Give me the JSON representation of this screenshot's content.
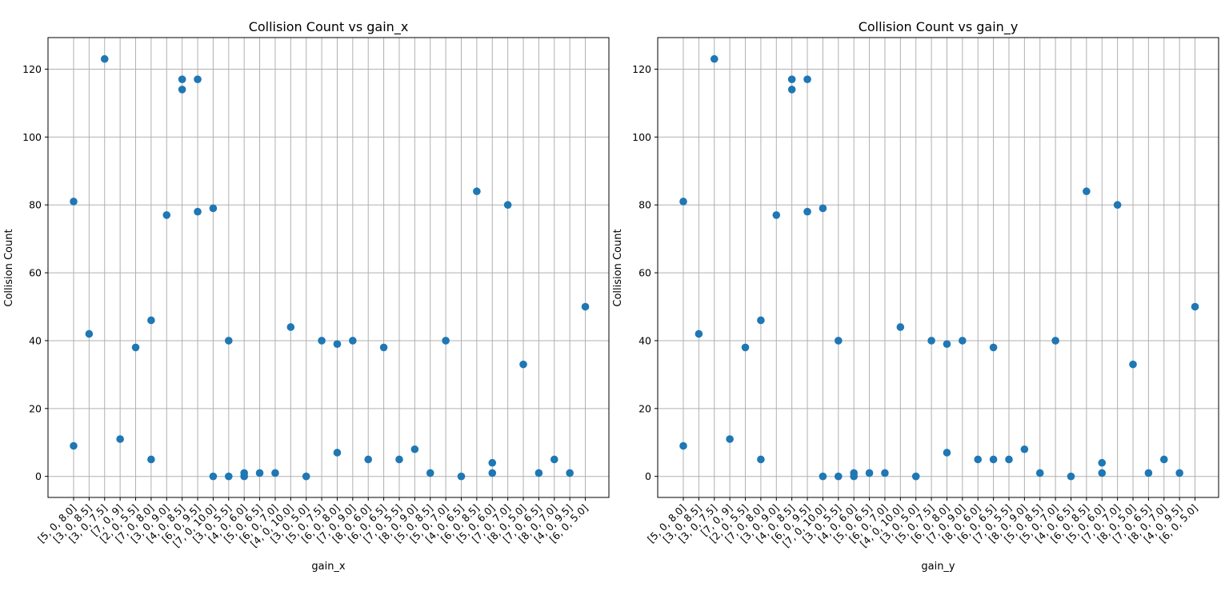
{
  "chart_data": [
    {
      "type": "scatter",
      "title": "Collision Count vs gain_x",
      "xlabel": "gain_x",
      "ylabel": "Collision Count",
      "ylim": [
        -6.2,
        129.3
      ],
      "yticks": [
        0,
        20,
        40,
        60,
        80,
        100,
        120
      ],
      "grid": true,
      "marker_color": "#1f77b4",
      "categories": [
        "[5, 0, 8.0]",
        "[3, 0, 8.5]",
        "[3, 0, 7.5]",
        "[7, 0, 9]",
        "[2, 0, 5.5]",
        "[7, 0, 8.0]",
        "[3, 0, 9.0]",
        "[4, 0, 8.5]",
        "[6, 0, 9.5]",
        "[7, 0, 10.0]",
        "[3, 0, 5.5]",
        "[4, 0, 6.0]",
        "[5, 0, 6.5]",
        "[6, 0, 7.0]",
        "[4, 0, 10.0]",
        "[3, 0, 5.0]",
        "[5, 0, 7.5]",
        "[6, 0, 8.0]",
        "[7, 0, 9.0]",
        "[8, 0, 6.0]",
        "[6, 0, 6.5]",
        "[7, 0, 5.5]",
        "[8, 0, 9.0]",
        "[5, 0, 8.5]",
        "[5, 0, 7.0]",
        "[4, 0, 6.5]",
        "[6, 0, 8.5]",
        "[5, 0, 6.0]",
        "[7, 0, 7.0]",
        "[8, 0, 5.0]",
        "[7, 0, 6.5]",
        "[8, 0, 7.0]",
        "[4, 0, 9.5]",
        "[6, 0, 5.0]"
      ],
      "points": [
        {
          "x": 0,
          "y": 81
        },
        {
          "x": 0,
          "y": 9
        },
        {
          "x": 1,
          "y": 42
        },
        {
          "x": 2,
          "y": 123
        },
        {
          "x": 3,
          "y": 11
        },
        {
          "x": 4,
          "y": 38
        },
        {
          "x": 5,
          "y": 46
        },
        {
          "x": 5,
          "y": 5
        },
        {
          "x": 6,
          "y": 77
        },
        {
          "x": 7,
          "y": 117
        },
        {
          "x": 7,
          "y": 114
        },
        {
          "x": 8,
          "y": 117
        },
        {
          "x": 8,
          "y": 78
        },
        {
          "x": 9,
          "y": 79
        },
        {
          "x": 9,
          "y": 0
        },
        {
          "x": 10,
          "y": 40
        },
        {
          "x": 10,
          "y": 0
        },
        {
          "x": 11,
          "y": 1
        },
        {
          "x": 11,
          "y": 0
        },
        {
          "x": 12,
          "y": 1
        },
        {
          "x": 13,
          "y": 1
        },
        {
          "x": 14,
          "y": 44
        },
        {
          "x": 15,
          "y": 0
        },
        {
          "x": 16,
          "y": 40
        },
        {
          "x": 17,
          "y": 39
        },
        {
          "x": 17,
          "y": 7
        },
        {
          "x": 18,
          "y": 40
        },
        {
          "x": 19,
          "y": 5
        },
        {
          "x": 20,
          "y": 38
        },
        {
          "x": 21,
          "y": 5
        },
        {
          "x": 22,
          "y": 8
        },
        {
          "x": 23,
          "y": 1
        },
        {
          "x": 24,
          "y": 40
        },
        {
          "x": 25,
          "y": 0
        },
        {
          "x": 26,
          "y": 84
        },
        {
          "x": 27,
          "y": 4
        },
        {
          "x": 27,
          "y": 1
        },
        {
          "x": 28,
          "y": 80
        },
        {
          "x": 29,
          "y": 33
        },
        {
          "x": 30,
          "y": 1
        },
        {
          "x": 31,
          "y": 5
        },
        {
          "x": 32,
          "y": 1
        },
        {
          "x": 33,
          "y": 50
        }
      ]
    },
    {
      "type": "scatter",
      "title": "Collision Count vs gain_y",
      "xlabel": "gain_y",
      "ylabel": "Collision Count",
      "ylim": [
        -6.2,
        129.3
      ],
      "yticks": [
        0,
        20,
        40,
        60,
        80,
        100,
        120
      ],
      "grid": true,
      "marker_color": "#1f77b4",
      "categories": [
        "[5, 0, 8.0]",
        "[3, 0, 8.5]",
        "[3, 0, 7.5]",
        "[7, 0, 9]",
        "[2, 0, 5.5]",
        "[7, 0, 8.0]",
        "[3, 0, 9.0]",
        "[4, 0, 8.5]",
        "[6, 0, 9.5]",
        "[7, 0, 10.0]",
        "[3, 0, 5.5]",
        "[4, 0, 6.0]",
        "[5, 0, 6.5]",
        "[6, 0, 7.0]",
        "[4, 0, 10.0]",
        "[3, 0, 5.0]",
        "[5, 0, 7.5]",
        "[6, 0, 8.0]",
        "[7, 0, 9.0]",
        "[8, 0, 6.0]",
        "[6, 0, 6.5]",
        "[7, 0, 5.5]",
        "[8, 0, 9.0]",
        "[5, 0, 8.5]",
        "[5, 0, 7.0]",
        "[4, 0, 6.5]",
        "[6, 0, 8.5]",
        "[5, 0, 6.0]",
        "[7, 0, 7.0]",
        "[8, 0, 5.0]",
        "[7, 0, 6.5]",
        "[8, 0, 7.0]",
        "[4, 0, 9.5]",
        "[6, 0, 5.0]"
      ],
      "points": [
        {
          "x": 0,
          "y": 81
        },
        {
          "x": 0,
          "y": 9
        },
        {
          "x": 1,
          "y": 42
        },
        {
          "x": 2,
          "y": 123
        },
        {
          "x": 3,
          "y": 11
        },
        {
          "x": 4,
          "y": 38
        },
        {
          "x": 5,
          "y": 46
        },
        {
          "x": 5,
          "y": 5
        },
        {
          "x": 6,
          "y": 77
        },
        {
          "x": 7,
          "y": 117
        },
        {
          "x": 7,
          "y": 114
        },
        {
          "x": 8,
          "y": 117
        },
        {
          "x": 8,
          "y": 78
        },
        {
          "x": 9,
          "y": 79
        },
        {
          "x": 9,
          "y": 0
        },
        {
          "x": 10,
          "y": 40
        },
        {
          "x": 10,
          "y": 0
        },
        {
          "x": 11,
          "y": 1
        },
        {
          "x": 11,
          "y": 0
        },
        {
          "x": 12,
          "y": 1
        },
        {
          "x": 13,
          "y": 1
        },
        {
          "x": 14,
          "y": 44
        },
        {
          "x": 15,
          "y": 0
        },
        {
          "x": 16,
          "y": 40
        },
        {
          "x": 17,
          "y": 39
        },
        {
          "x": 17,
          "y": 7
        },
        {
          "x": 18,
          "y": 40
        },
        {
          "x": 19,
          "y": 5
        },
        {
          "x": 20,
          "y": 5
        },
        {
          "x": 20,
          "y": 38
        },
        {
          "x": 21,
          "y": 5
        },
        {
          "x": 22,
          "y": 8
        },
        {
          "x": 23,
          "y": 1
        },
        {
          "x": 24,
          "y": 40
        },
        {
          "x": 25,
          "y": 0
        },
        {
          "x": 26,
          "y": 84
        },
        {
          "x": 27,
          "y": 4
        },
        {
          "x": 27,
          "y": 1
        },
        {
          "x": 28,
          "y": 80
        },
        {
          "x": 29,
          "y": 33
        },
        {
          "x": 30,
          "y": 1
        },
        {
          "x": 31,
          "y": 5
        },
        {
          "x": 32,
          "y": 1
        },
        {
          "x": 33,
          "y": 50
        }
      ]
    }
  ]
}
